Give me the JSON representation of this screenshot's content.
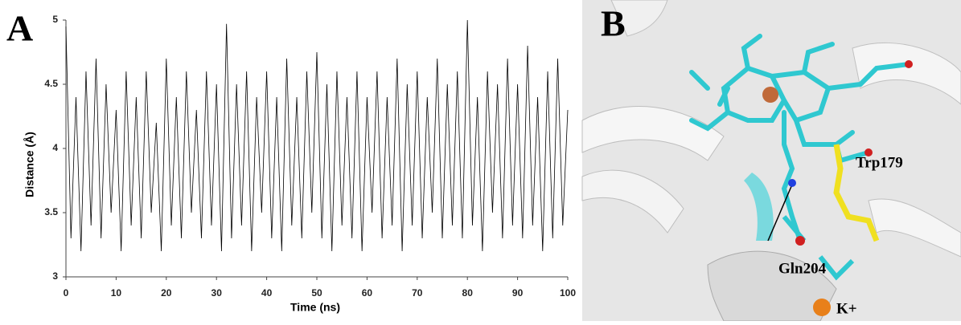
{
  "chart_data": {
    "type": "line",
    "panel_label": "A",
    "x_label": "Time (ns)",
    "y_label": "Distance (Å)",
    "x": [
      0,
      1,
      2,
      3,
      4,
      5,
      6,
      7,
      8,
      9,
      10,
      11,
      12,
      13,
      14,
      15,
      16,
      17,
      18,
      19,
      20,
      21,
      22,
      23,
      24,
      25,
      26,
      27,
      28,
      29,
      30,
      31,
      32,
      33,
      34,
      35,
      36,
      37,
      38,
      39,
      40,
      41,
      42,
      43,
      44,
      45,
      46,
      47,
      48,
      49,
      50,
      51,
      52,
      53,
      54,
      55,
      56,
      57,
      58,
      59,
      60,
      61,
      62,
      63,
      64,
      65,
      66,
      67,
      68,
      69,
      70,
      71,
      72,
      73,
      74,
      75,
      76,
      77,
      78,
      79,
      80,
      81,
      82,
      83,
      84,
      85,
      86,
      87,
      88,
      89,
      90,
      91,
      92,
      93,
      94,
      95,
      96,
      97,
      98,
      99,
      100
    ],
    "values": [
      4.95,
      3.3,
      4.4,
      3.2,
      4.6,
      3.4,
      4.7,
      3.3,
      4.5,
      3.5,
      4.3,
      3.2,
      4.6,
      3.4,
      4.4,
      3.3,
      4.6,
      3.5,
      4.2,
      3.2,
      4.7,
      3.4,
      4.4,
      3.3,
      4.6,
      3.5,
      4.3,
      3.3,
      4.6,
      3.4,
      4.5,
      3.2,
      4.97,
      3.3,
      4.5,
      3.4,
      4.6,
      3.2,
      4.4,
      3.5,
      4.6,
      3.3,
      4.4,
      3.2,
      4.7,
      3.4,
      4.4,
      3.3,
      4.6,
      3.5,
      4.75,
      3.3,
      4.5,
      3.2,
      4.6,
      3.4,
      4.4,
      3.3,
      4.6,
      3.2,
      4.4,
      3.5,
      4.6,
      3.3,
      4.4,
      3.4,
      4.7,
      3.2,
      4.5,
      3.4,
      4.6,
      3.3,
      4.4,
      3.5,
      4.7,
      3.3,
      4.5,
      3.4,
      4.6,
      3.3,
      5.0,
      3.4,
      4.4,
      3.2,
      4.6,
      3.5,
      4.5,
      3.3,
      4.7,
      3.4,
      4.5,
      3.3,
      4.8,
      3.4,
      4.4,
      3.2,
      4.6,
      3.3,
      4.7,
      3.4,
      4.3
    ],
    "color": "#000000",
    "xlim": [
      0,
      100
    ],
    "xticks": [
      0,
      10,
      20,
      30,
      40,
      50,
      60,
      70,
      80,
      90,
      100
    ],
    "ylim": [
      3,
      5
    ],
    "yticks": [
      3,
      3.5,
      4,
      4.5,
      5
    ],
    "grid": false
  },
  "image_panel": {
    "panel_label": "B",
    "labels": [
      "Trp179",
      "Gln204",
      "K+"
    ]
  }
}
